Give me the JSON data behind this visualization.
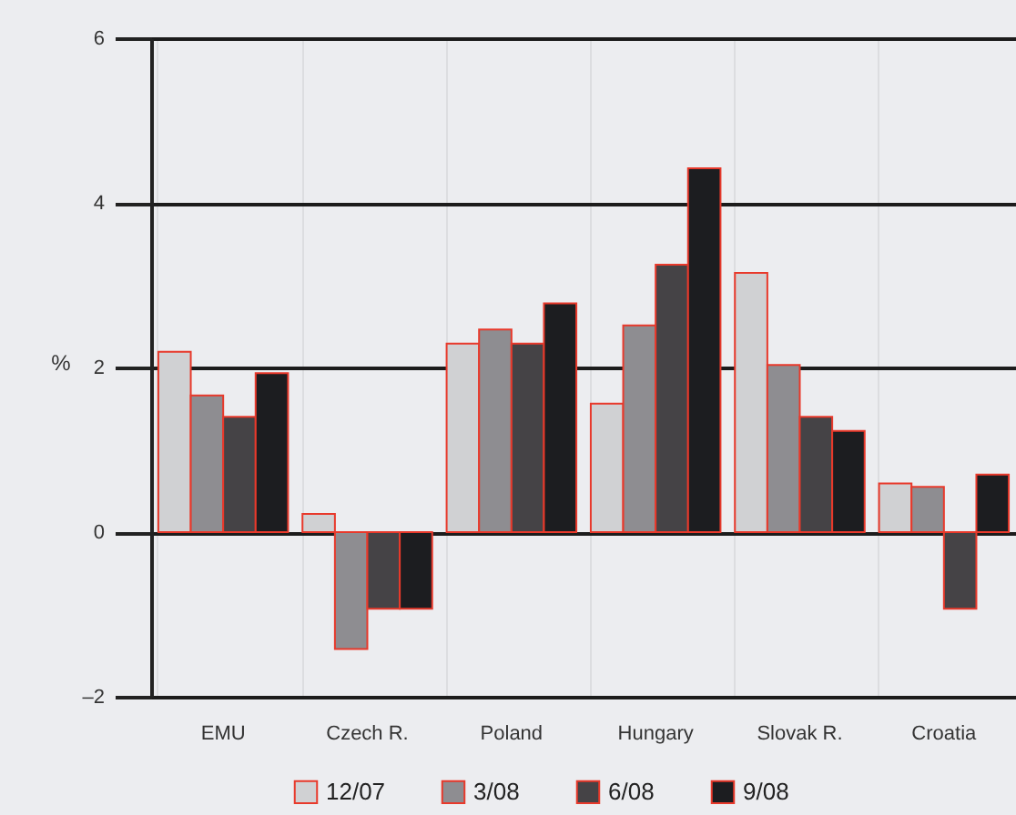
{
  "chart_data": {
    "type": "bar",
    "ylabel": "%",
    "categories": [
      "EMU",
      "Czech R.",
      "Poland",
      "Hungary",
      "Slovak R.",
      "Croatia"
    ],
    "series": [
      {
        "name": "12/07",
        "color": "#d0d1d3",
        "values": [
          2.19,
          0.22,
          2.29,
          1.56,
          3.15,
          0.59
        ]
      },
      {
        "name": "3/08",
        "color": "#8e8d91",
        "values": [
          1.66,
          -1.42,
          2.46,
          2.51,
          2.03,
          0.55
        ]
      },
      {
        "name": "6/08",
        "color": "#454346",
        "values": [
          1.4,
          -0.93,
          2.29,
          3.25,
          1.4,
          -0.93
        ]
      },
      {
        "name": "9/08",
        "color": "#1c1d20",
        "values": [
          1.93,
          -0.93,
          2.78,
          4.42,
          1.23,
          0.7
        ]
      }
    ],
    "ylim": [
      -2,
      6
    ],
    "yticks": [
      {
        "value": -2,
        "label": "–2"
      },
      0,
      2,
      4,
      6
    ],
    "grid": true,
    "legend": "bottom"
  }
}
